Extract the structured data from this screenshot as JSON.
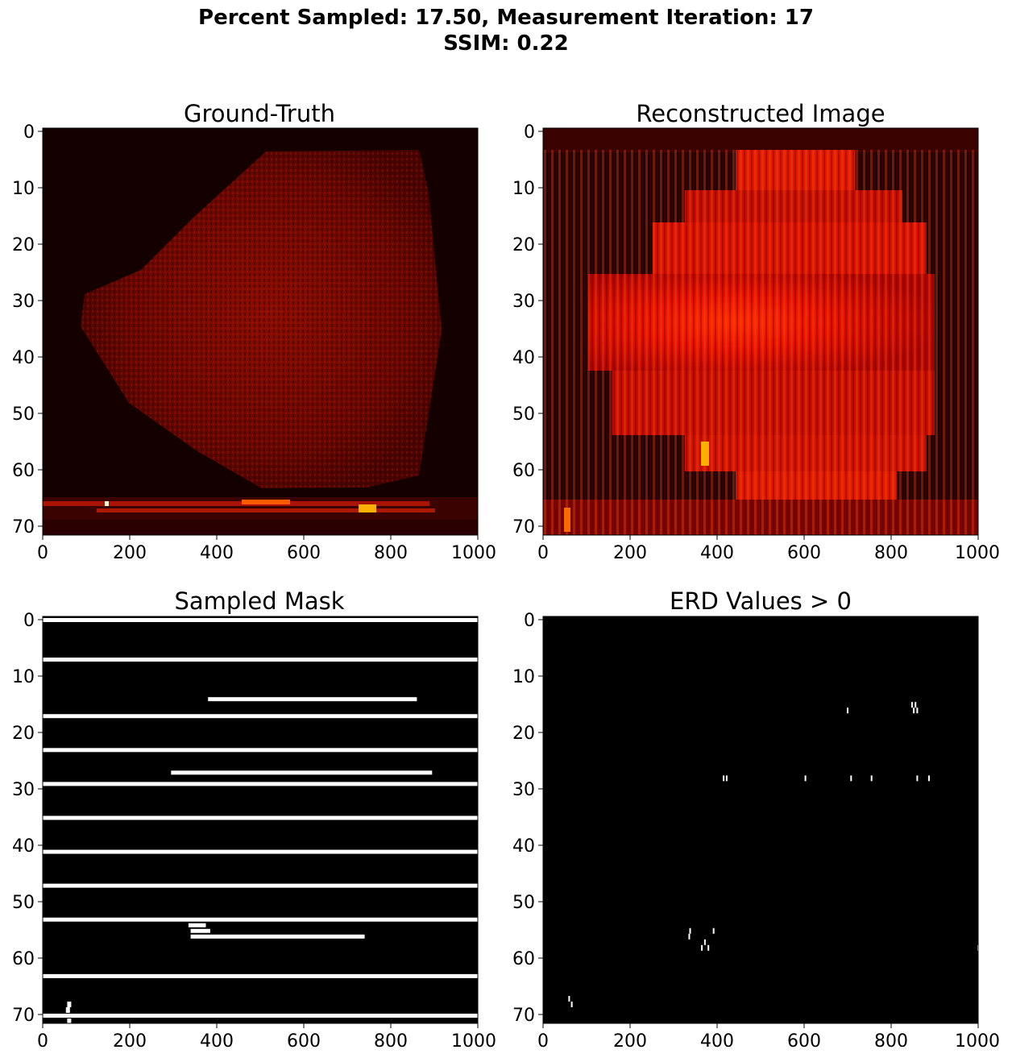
{
  "figure": {
    "title_line1": "Percent Sampled: 17.50, Measurement Iteration: 17",
    "title_line2": "SSIM: 0.22"
  },
  "chart_data": [
    {
      "type": "heatmap",
      "title": "Ground-Truth",
      "colormap": "hot",
      "xlim": [
        0,
        1000
      ],
      "ylim": [
        72,
        0
      ],
      "xticks": [
        "0",
        "200",
        "400",
        "600",
        "800",
        "1000"
      ],
      "yticks": [
        "0",
        "10",
        "20",
        "30",
        "40",
        "50",
        "60",
        "70"
      ],
      "description_values": {
        "blob_rows": [
          3,
          64
        ],
        "blob_center_col": 560,
        "bright_rows": [
          66,
          67,
          68
        ]
      }
    },
    {
      "type": "heatmap",
      "title": "Reconstructed Image",
      "colormap": "hot",
      "xlim": [
        0,
        1000
      ],
      "ylim": [
        72,
        0
      ],
      "xticks": [
        "0",
        "200",
        "400",
        "600",
        "800",
        "1000"
      ],
      "yticks": [
        "0",
        "10",
        "20",
        "30",
        "40",
        "50",
        "60",
        "70"
      ]
    },
    {
      "type": "heatmap",
      "title": "Sampled Mask",
      "colormap": "gray",
      "xlim": [
        0,
        1000
      ],
      "ylim": [
        72,
        0
      ],
      "xticks": [
        "0",
        "200",
        "400",
        "600",
        "800",
        "1000"
      ],
      "yticks": [
        "0",
        "10",
        "20",
        "30",
        "40",
        "50",
        "60",
        "70"
      ],
      "full_rows": [
        0,
        7,
        17,
        23,
        29,
        35,
        41,
        47,
        53,
        63,
        70
      ],
      "partial_rows": [
        {
          "row": 14,
          "start": 380,
          "end": 860
        },
        {
          "row": 27,
          "start": 295,
          "end": 895
        },
        {
          "row": 54,
          "start": 335,
          "end": 375
        },
        {
          "row": 55,
          "start": 340,
          "end": 385
        },
        {
          "row": 56,
          "start": 340,
          "end": 740
        }
      ],
      "points": [
        {
          "row": 68,
          "col": 60
        },
        {
          "row": 69,
          "col": 57
        },
        {
          "row": 71,
          "col": 60
        }
      ]
    },
    {
      "type": "heatmap",
      "title": "ERD Values > 0",
      "colormap": "gray",
      "xlim": [
        0,
        1000
      ],
      "ylim": [
        72,
        0
      ],
      "xticks": [
        "0",
        "200",
        "400",
        "600",
        "800",
        "1000"
      ],
      "yticks": [
        "0",
        "10",
        "20",
        "30",
        "40",
        "50",
        "60",
        "70"
      ],
      "points": [
        {
          "row": 16,
          "col": 700
        },
        {
          "row": 15,
          "col": 848
        },
        {
          "row": 16,
          "col": 852
        },
        {
          "row": 15,
          "col": 856
        },
        {
          "row": 16,
          "col": 860
        },
        {
          "row": 28,
          "col": 415
        },
        {
          "row": 28,
          "col": 422
        },
        {
          "row": 28,
          "col": 603
        },
        {
          "row": 28,
          "col": 708
        },
        {
          "row": 28,
          "col": 755
        },
        {
          "row": 28,
          "col": 860
        },
        {
          "row": 28,
          "col": 887
        },
        {
          "row": 55,
          "col": 338
        },
        {
          "row": 56,
          "col": 336
        },
        {
          "row": 58,
          "col": 365
        },
        {
          "row": 57,
          "col": 372
        },
        {
          "row": 58,
          "col": 380
        },
        {
          "row": 55,
          "col": 392
        },
        {
          "row": 58,
          "col": 1000
        },
        {
          "row": 67,
          "col": 60
        },
        {
          "row": 68,
          "col": 66
        }
      ]
    }
  ]
}
